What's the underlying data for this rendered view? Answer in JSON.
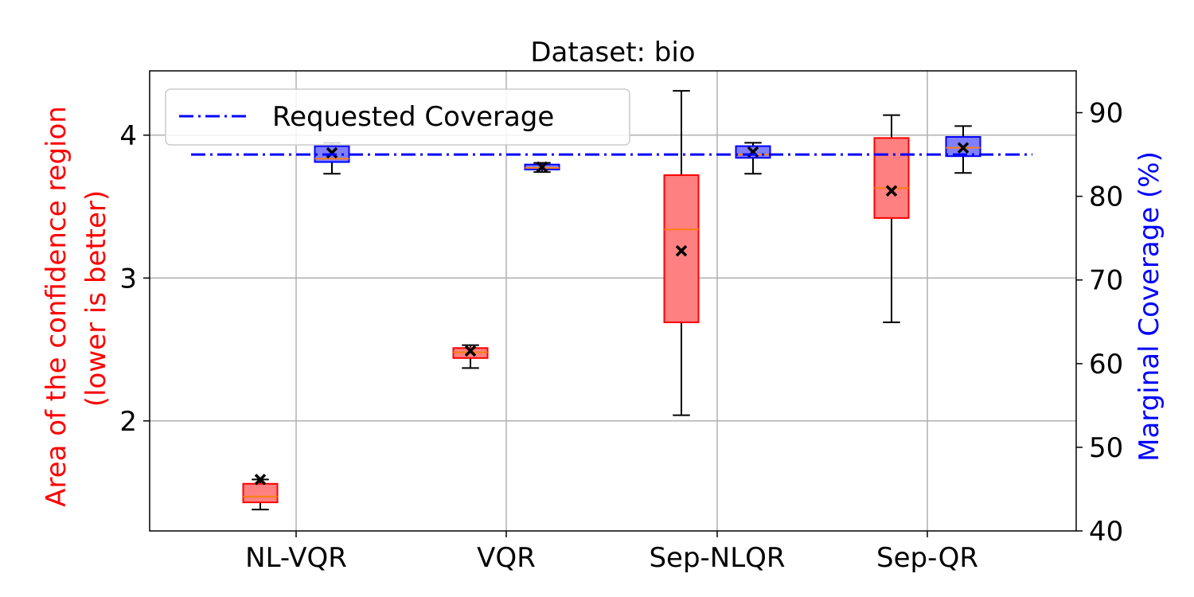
{
  "chart_data": {
    "type": "box",
    "title": "Dataset: bio",
    "categories": [
      "NL-VQR",
      "VQR",
      "Sep-NLQR",
      "Sep-QR"
    ],
    "ylabel_left": [
      "Area of the confidence region",
      "(lower is better)"
    ],
    "ylabel_right": "Marginal Coverage (%)",
    "ylim_left": [
      1.23,
      4.45
    ],
    "ylim_right": [
      40,
      95
    ],
    "yticks_left": [
      2,
      3,
      4
    ],
    "yticks_right": [
      40,
      50,
      60,
      70,
      80,
      90
    ],
    "grid": true,
    "legend": {
      "position": "top-left",
      "entries": [
        "Requested Coverage"
      ]
    },
    "requested_coverage": 85,
    "colors": {
      "area": "#ff0000",
      "coverage": "#0000ff",
      "median": "#ff7f0e",
      "mean_marker": "#000000",
      "area_fill": "#ff8080",
      "coverage_fill": "#8080ff",
      "requested_line": "#0000ff"
    },
    "series": [
      {
        "name": "Area of the confidence region",
        "axis": "left",
        "boxes": [
          {
            "category": "NL-VQR",
            "whisker_low": 1.38,
            "q1": 1.43,
            "median": 1.47,
            "q3": 1.56,
            "whisker_high": 1.59,
            "mean": 1.59
          },
          {
            "category": "VQR",
            "whisker_low": 2.37,
            "q1": 2.44,
            "median": 2.48,
            "q3": 2.51,
            "whisker_high": 2.53,
            "mean": 2.49
          },
          {
            "category": "Sep-NLQR",
            "whisker_low": 2.04,
            "q1": 2.69,
            "median": 3.34,
            "q3": 3.72,
            "whisker_high": 4.31,
            "mean": 3.19
          },
          {
            "category": "Sep-QR",
            "whisker_low": 2.69,
            "q1": 3.42,
            "median": 3.63,
            "q3": 3.98,
            "whisker_high": 4.14,
            "mean": 3.61
          }
        ]
      },
      {
        "name": "Marginal Coverage",
        "axis": "right",
        "boxes": [
          {
            "category": "NL-VQR",
            "whisker_low": 82.7,
            "q1": 84.1,
            "median": 84.5,
            "q3": 86.0,
            "whisker_high": 86.4,
            "mean": 85.2
          },
          {
            "category": "VQR",
            "whisker_low": 82.9,
            "q1": 83.2,
            "median": 83.4,
            "q3": 83.8,
            "whisker_high": 84.0,
            "mean": 83.5
          },
          {
            "category": "Sep-NLQR",
            "whisker_low": 82.7,
            "q1": 84.6,
            "median": 85.0,
            "q3": 86.0,
            "whisker_high": 86.4,
            "mean": 85.3
          },
          {
            "category": "Sep-QR",
            "whisker_low": 82.8,
            "q1": 84.8,
            "median": 85.8,
            "q3": 87.1,
            "whisker_high": 88.4,
            "mean": 85.8
          }
        ]
      }
    ]
  }
}
